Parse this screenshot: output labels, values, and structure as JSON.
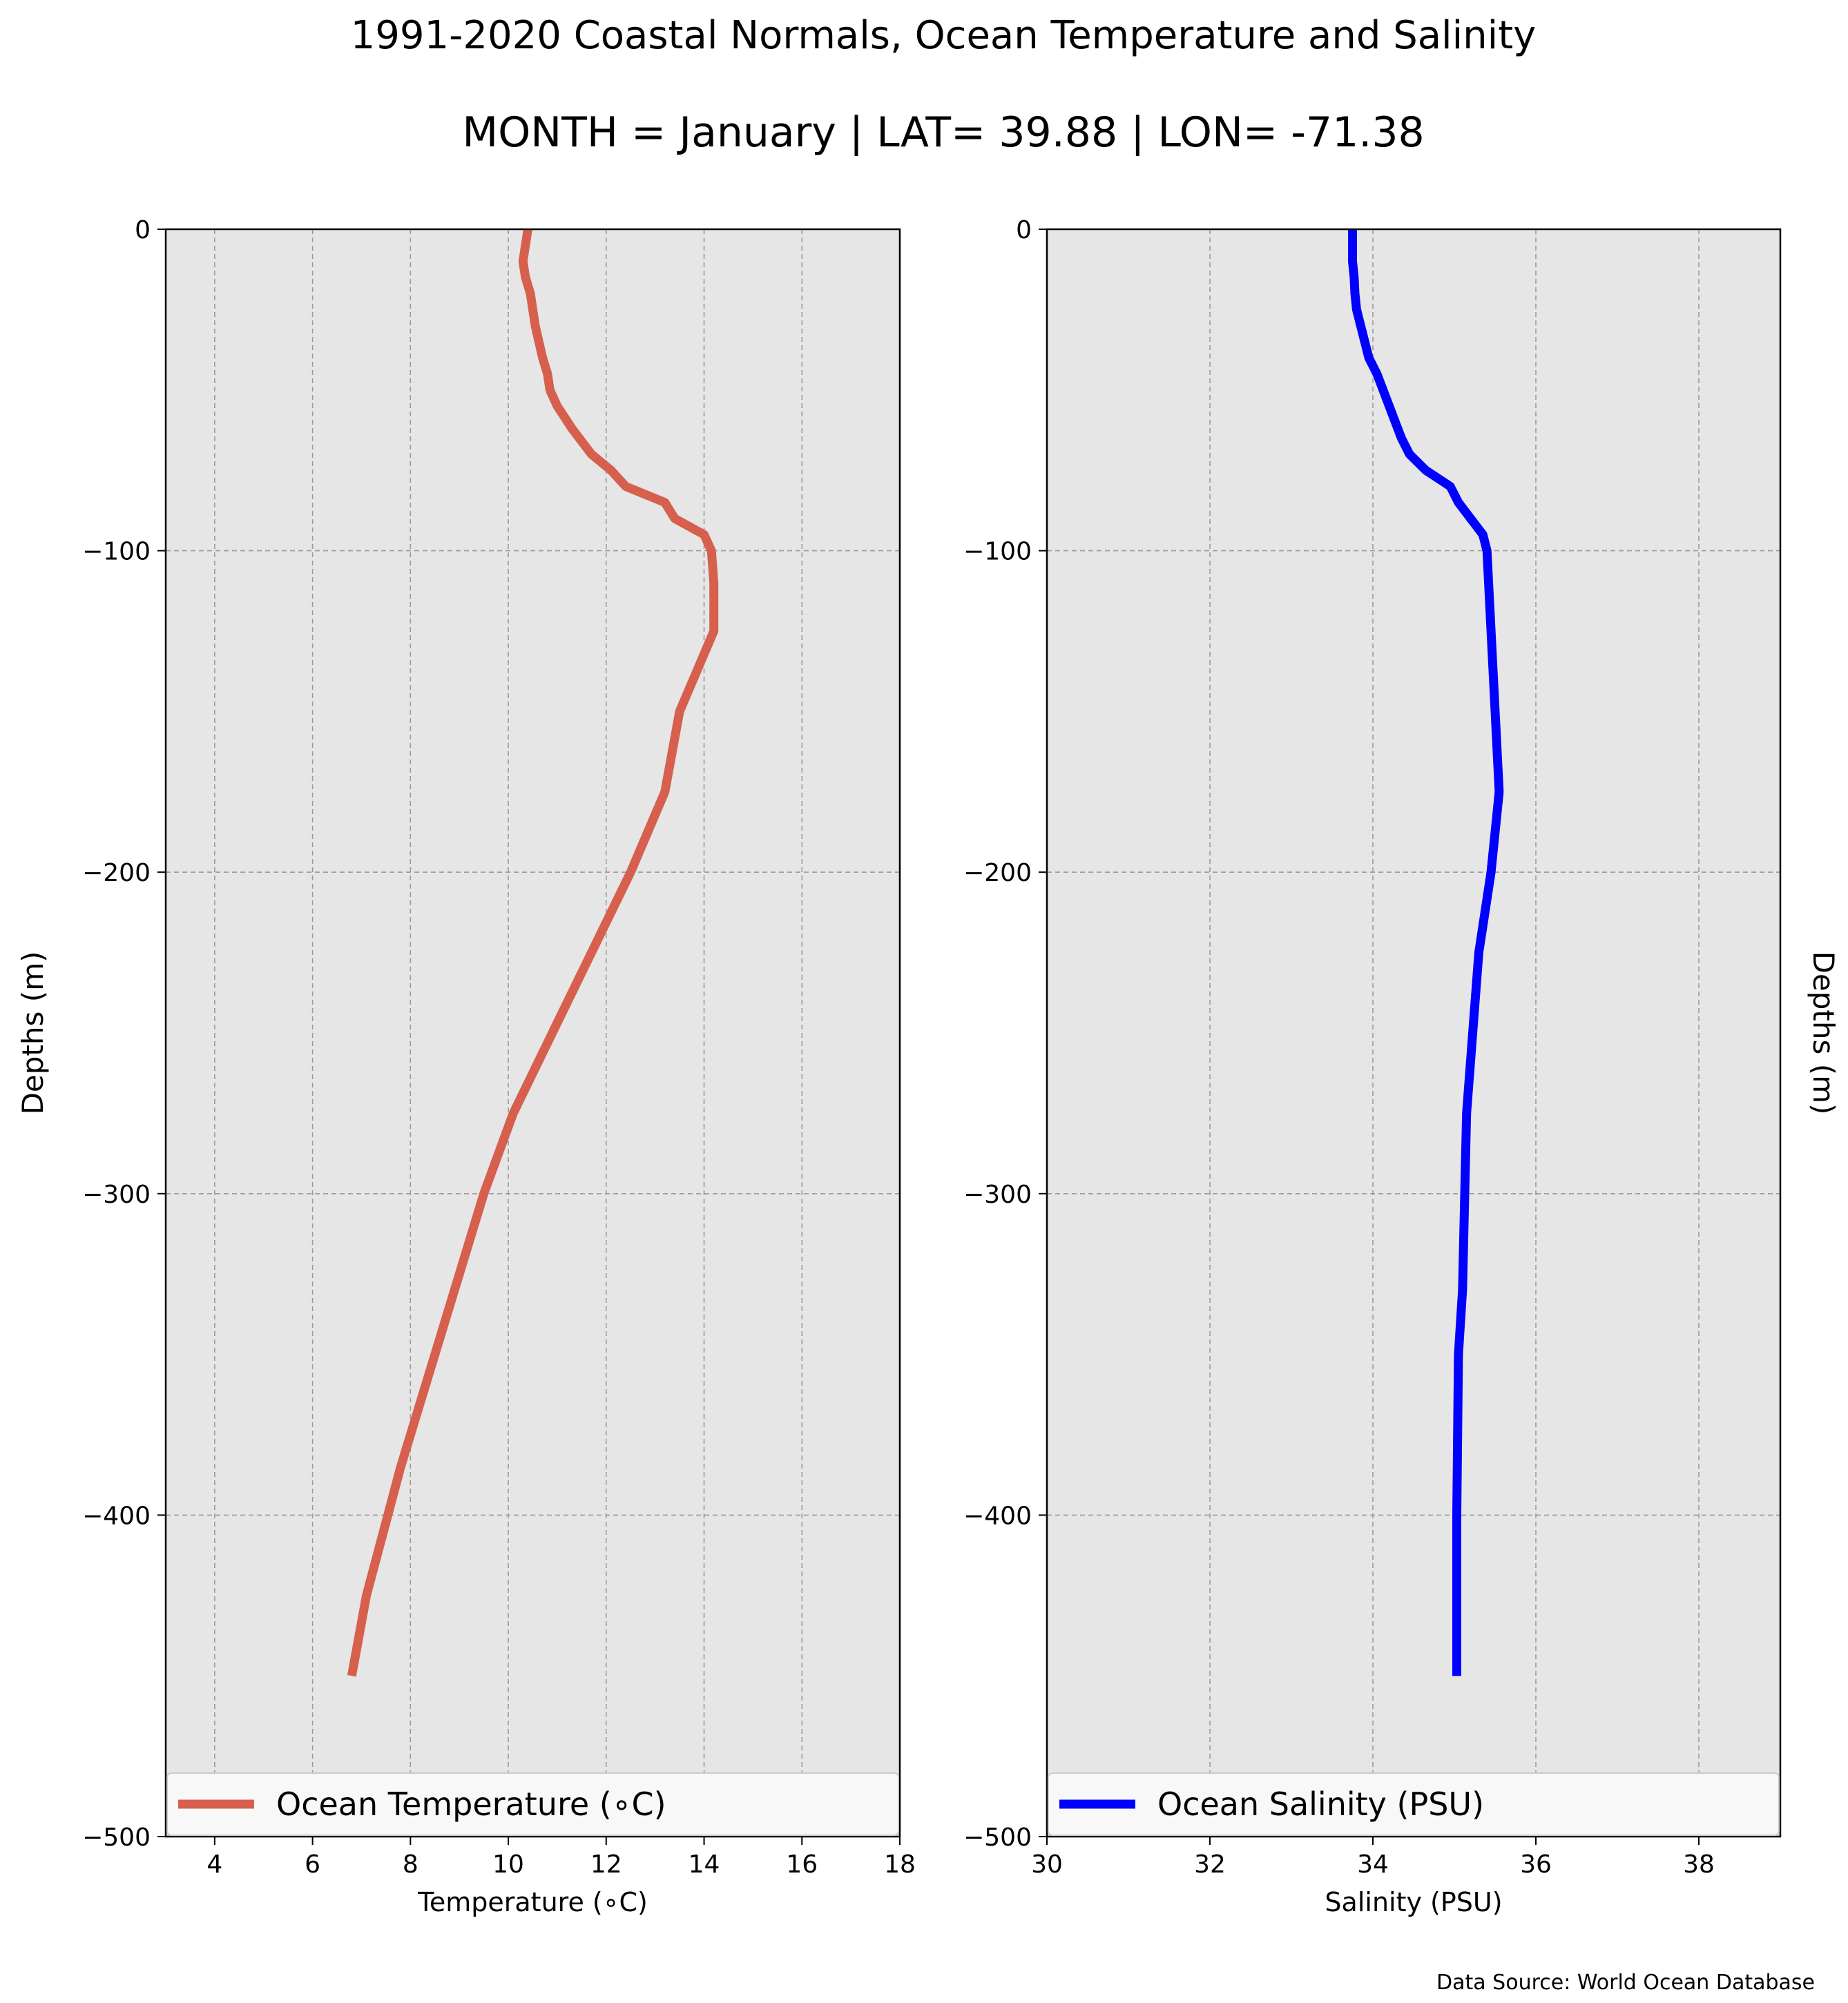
{
  "title": "1991-2020 Coastal Normals, Ocean Temperature and Salinity",
  "subtitle": "MONTH = January | LAT= 39.88 | LON= -71.38",
  "source_note": "Data Source: World Ocean Database",
  "colors": {
    "plot_background": "#e6e6e6",
    "grid": "#9a9a9a",
    "temperature_line": "#d6604d",
    "salinity_line": "#0000ff"
  },
  "chart_data": [
    {
      "type": "line",
      "xlabel": "Temperature (∘C)",
      "ylabel": "Depths (m)",
      "xlim": [
        3,
        18
      ],
      "ylim": [
        -500,
        0
      ],
      "xticks": [
        4,
        6,
        8,
        10,
        12,
        14,
        16,
        18
      ],
      "yticks": [
        0,
        -100,
        -200,
        -300,
        -400,
        -500
      ],
      "grid": true,
      "legend_position": "bottom",
      "series": [
        {
          "name": "Ocean Temperature (∘C)",
          "color": "#d6604d",
          "x": [
            10.4,
            10.3,
            10.35,
            10.45,
            10.55,
            10.7,
            10.8,
            10.85,
            11.0,
            11.3,
            11.7,
            12.1,
            12.4,
            13.2,
            13.4,
            14.0,
            14.15,
            14.2,
            14.2,
            13.5,
            13.2,
            12.5,
            11.7,
            10.9,
            10.1,
            9.5,
            8.5,
            7.8,
            7.1,
            6.8
          ],
          "y": [
            0,
            -10,
            -15,
            -20,
            -30,
            -40,
            -45,
            -50,
            -55,
            -62,
            -70,
            -75,
            -80,
            -85,
            -90,
            -95,
            -100,
            -110,
            -125,
            -150,
            -175,
            -200,
            -225,
            -250,
            -275,
            -300,
            -350,
            -385,
            -425,
            -450
          ]
        }
      ]
    },
    {
      "type": "line",
      "xlabel": "Salinity (PSU)",
      "ylabel": "Depths (m)",
      "xlim": [
        30,
        39
      ],
      "ylim": [
        -500,
        0
      ],
      "xticks": [
        30,
        32,
        34,
        36,
        38
      ],
      "yticks": [
        0,
        -100,
        -200,
        -300,
        -400,
        -500
      ],
      "grid": true,
      "legend_position": "bottom",
      "series": [
        {
          "name": "Ocean Salinity (PSU)",
          "color": "#0000ff",
          "x": [
            33.75,
            33.75,
            33.77,
            33.78,
            33.8,
            33.85,
            33.95,
            34.05,
            34.2,
            34.35,
            34.45,
            34.65,
            34.95,
            35.05,
            35.35,
            35.4,
            35.45,
            35.5,
            35.55,
            35.45,
            35.3,
            35.15,
            35.1,
            35.05,
            35.03,
            35.03
          ],
          "y": [
            0,
            -10,
            -15,
            -20,
            -25,
            -30,
            -40,
            -45,
            -55,
            -65,
            -70,
            -75,
            -80,
            -85,
            -95,
            -100,
            -125,
            -150,
            -175,
            -200,
            -225,
            -275,
            -330,
            -350,
            -400,
            -450
          ]
        }
      ]
    }
  ]
}
